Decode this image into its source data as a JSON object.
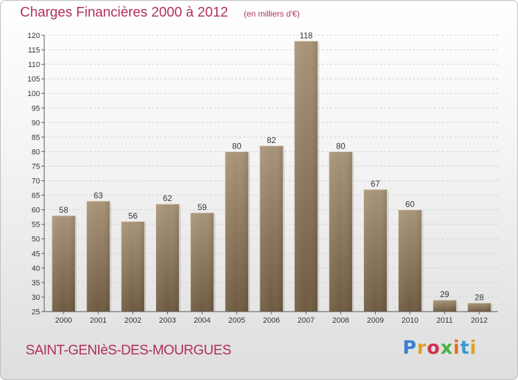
{
  "header": {
    "title": "Charges Financières 2000 à 2012",
    "unit": "(en milliers d'€)"
  },
  "footer": {
    "commune": "SAINT-GENIèS-DES-MOURGUES",
    "logo": [
      "P",
      "r",
      "o",
      "x",
      "i",
      "t",
      "i"
    ]
  },
  "colors": {
    "title": "#b03060",
    "bar_top": "#a89478",
    "bar_bottom": "#6e5a40",
    "grid": "#d0d0d0"
  },
  "chart_data": {
    "type": "bar",
    "title": "Charges Financières 2000 à 2012",
    "subtitle": "(en milliers d'€)",
    "categories": [
      "2000",
      "2001",
      "2002",
      "2003",
      "2004",
      "2005",
      "2006",
      "2007",
      "2008",
      "2009",
      "2010",
      "2011",
      "2012"
    ],
    "values": [
      58,
      63,
      56,
      62,
      59,
      80,
      82,
      118,
      80,
      67,
      60,
      29,
      28
    ],
    "ylim": [
      25,
      120
    ],
    "yticks": [
      25,
      30,
      35,
      40,
      45,
      50,
      55,
      60,
      65,
      70,
      75,
      80,
      85,
      90,
      95,
      100,
      105,
      110,
      115,
      120
    ],
    "grid": true,
    "legend": "none"
  }
}
